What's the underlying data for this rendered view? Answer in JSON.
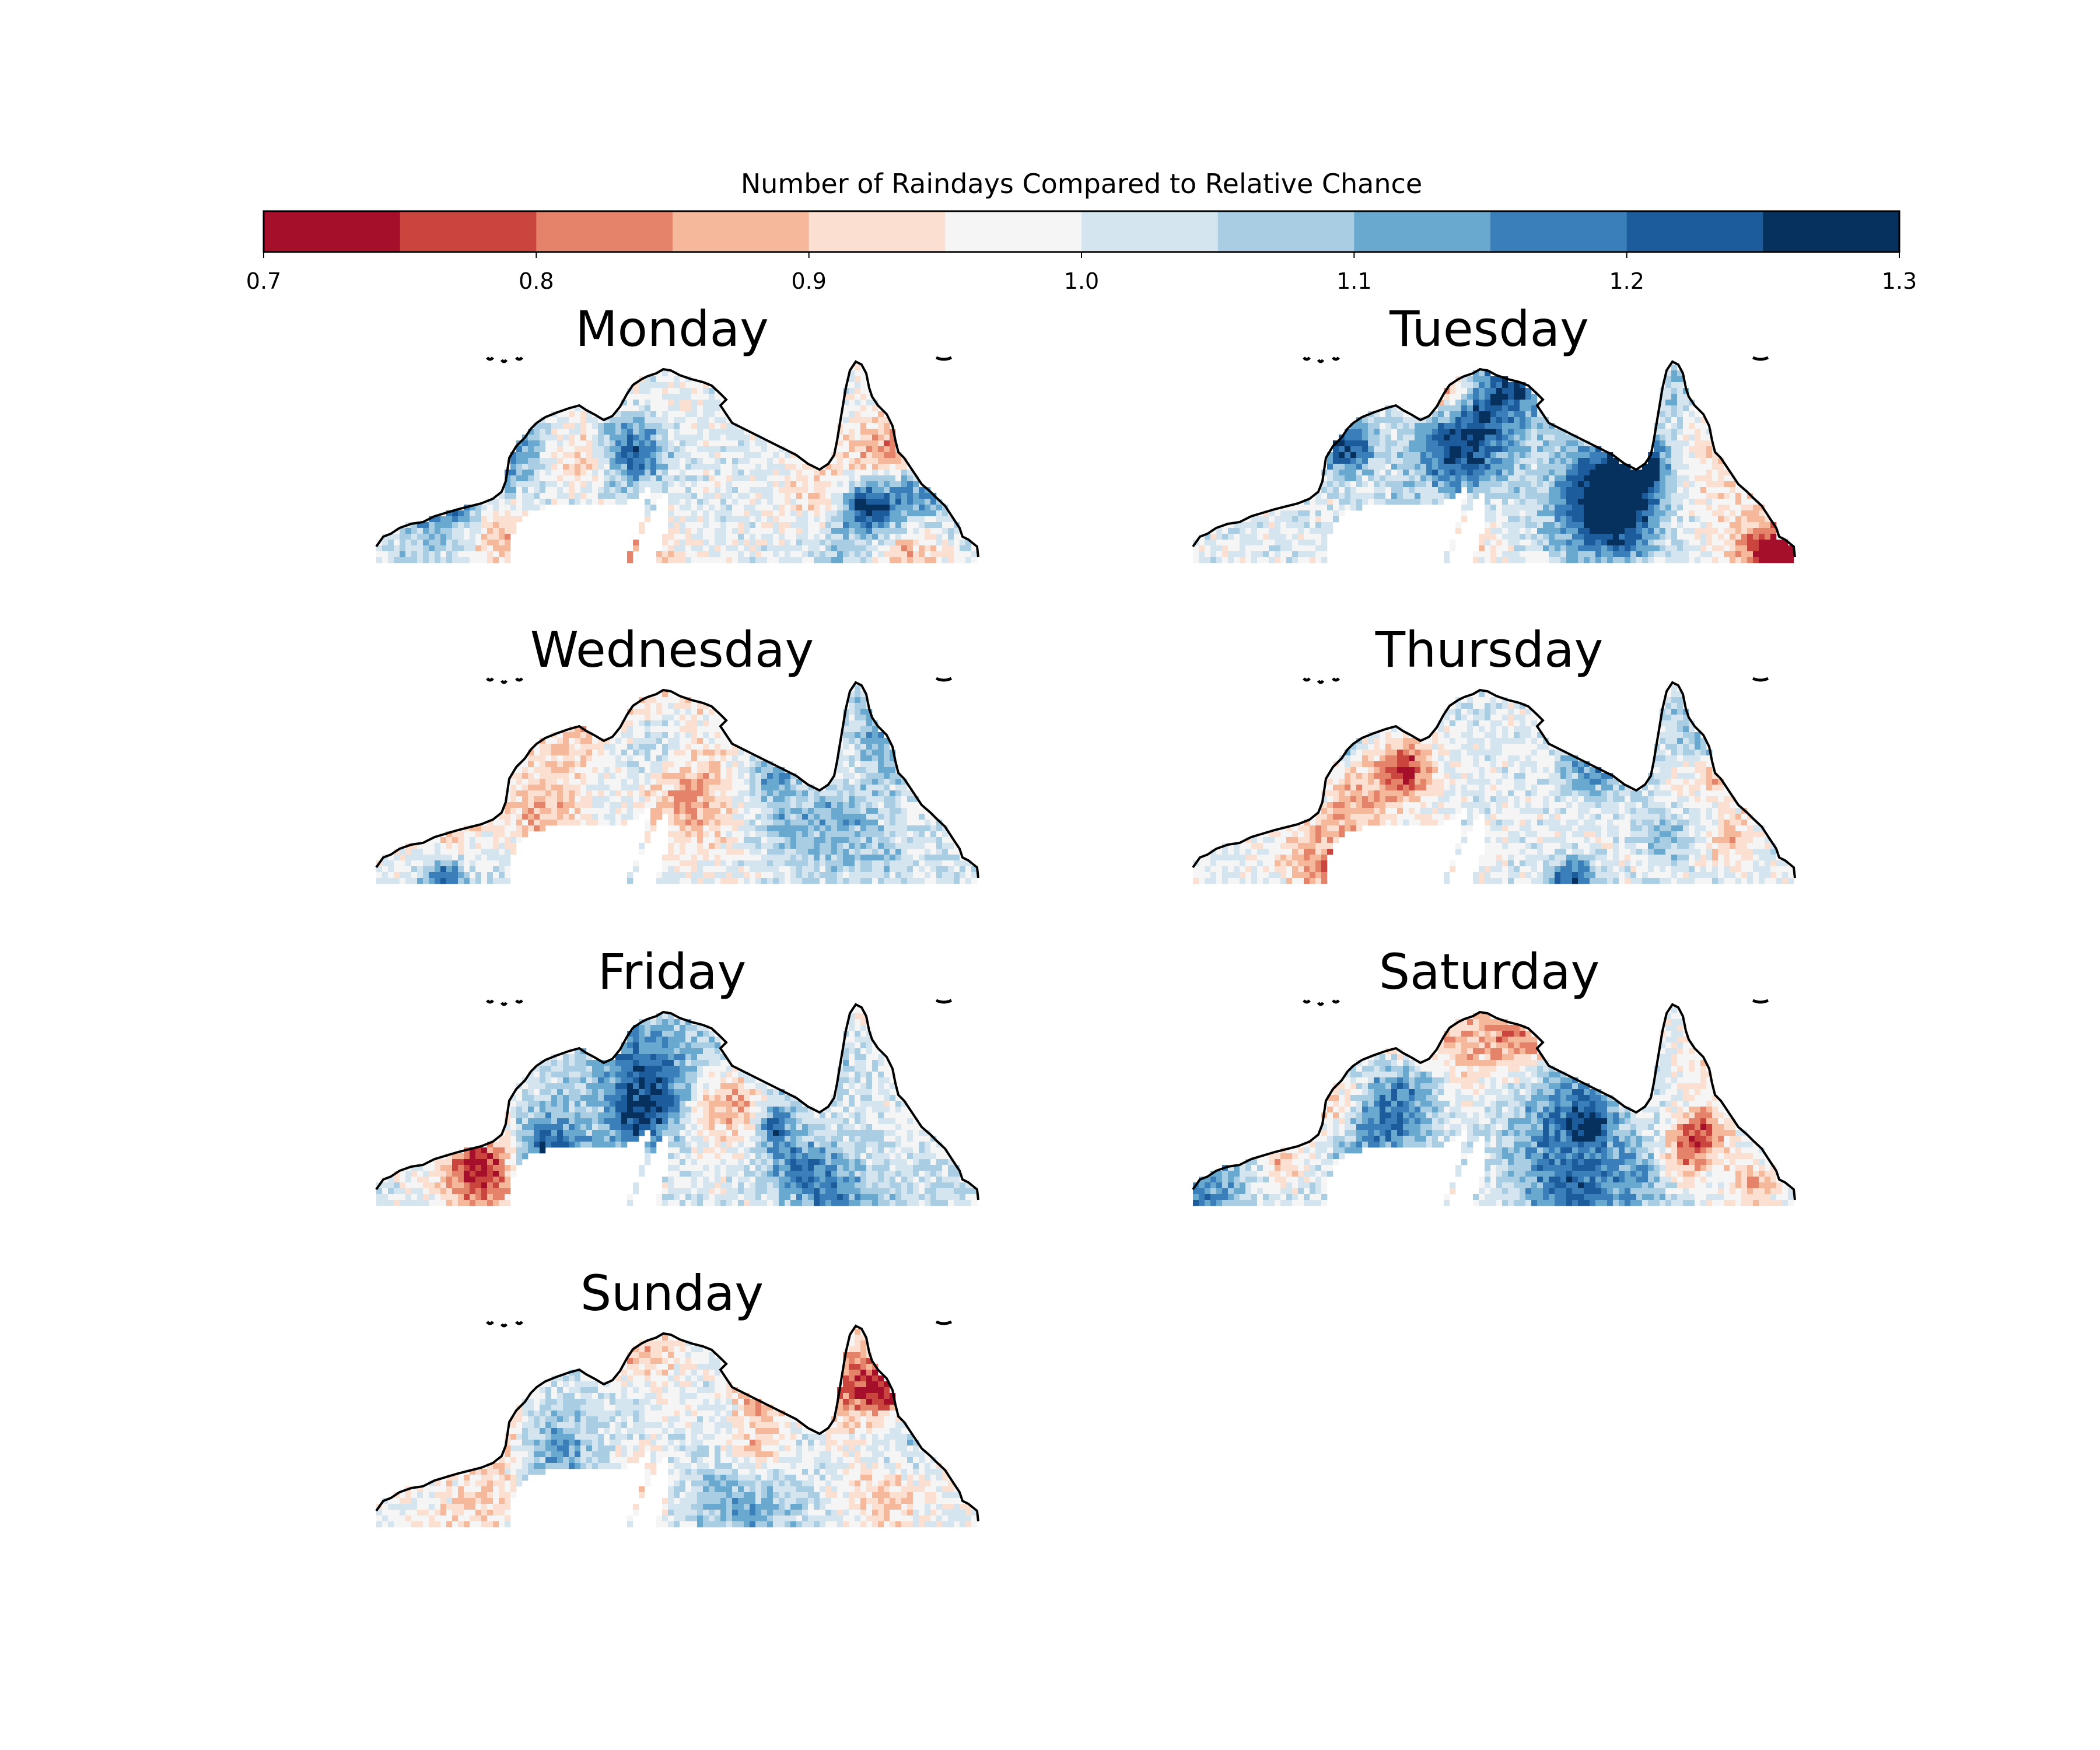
{
  "colorbar": {
    "title": "Number of Raindays Compared to Relative Chance",
    "range": [
      0.7,
      1.3
    ],
    "bin_edges": [
      0.7,
      0.75,
      0.8,
      0.85,
      0.9,
      0.95,
      1.0,
      1.05,
      1.1,
      1.15,
      1.2,
      1.25,
      1.3
    ],
    "colors": [
      "#a50f2a",
      "#c9453d",
      "#e5836a",
      "#f5b89b",
      "#fbe0d2",
      "#f5f5f5",
      "#d4e5ef",
      "#a9cde2",
      "#69a9cf",
      "#3a7fba",
      "#1c5b9c",
      "#06305e"
    ],
    "ticks": [
      "0.7",
      "0.8",
      "0.9",
      "1.0",
      "1.1",
      "1.2",
      "1.3"
    ],
    "tick_values": [
      0.7,
      0.8,
      0.9,
      1.0,
      1.1,
      1.2,
      1.3
    ]
  },
  "chart_data": {
    "type": "heatmap",
    "title": "Number of Raindays Compared to Relative Chance",
    "colorbar_range": [
      0.7,
      1.3
    ],
    "panels": [
      {
        "title": "Monday"
      },
      {
        "title": "Tuesday"
      },
      {
        "title": "Wednesday"
      },
      {
        "title": "Thursday"
      },
      {
        "title": "Friday"
      },
      {
        "title": "Saturday"
      },
      {
        "title": "Sunday"
      }
    ]
  }
}
